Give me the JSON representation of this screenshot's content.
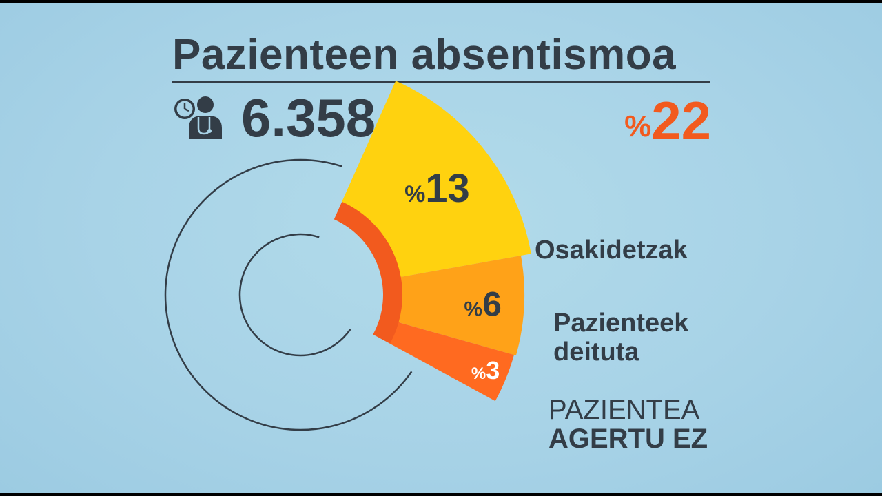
{
  "header": {
    "title": "Pazienteen absentismoa",
    "count": "6.358",
    "icon": "doctor-clock-icon",
    "total_percent_symbol": "%",
    "total_percent_value": "22"
  },
  "chart_data": {
    "type": "pie",
    "total_percent": 22,
    "categories": [
      "Osakidetzak",
      "Pazienteek deituta",
      "PAZIENTEA AGERTU EZ"
    ],
    "values": [
      13,
      6,
      3
    ],
    "value_labels": [
      "13",
      "6",
      "3"
    ],
    "percent_symbol": "%",
    "colors": [
      "#ffd20f",
      "#ffa218",
      "#ff6a20"
    ],
    "inner_band_color": "#f25a1e"
  },
  "labels": {
    "cat1": "Osakidetzak",
    "cat2_line1": "Pazienteek",
    "cat2_line2": "deituta",
    "cat3_line1": "PAZIENTEA",
    "cat3_line2": "AGERTU EZ"
  }
}
